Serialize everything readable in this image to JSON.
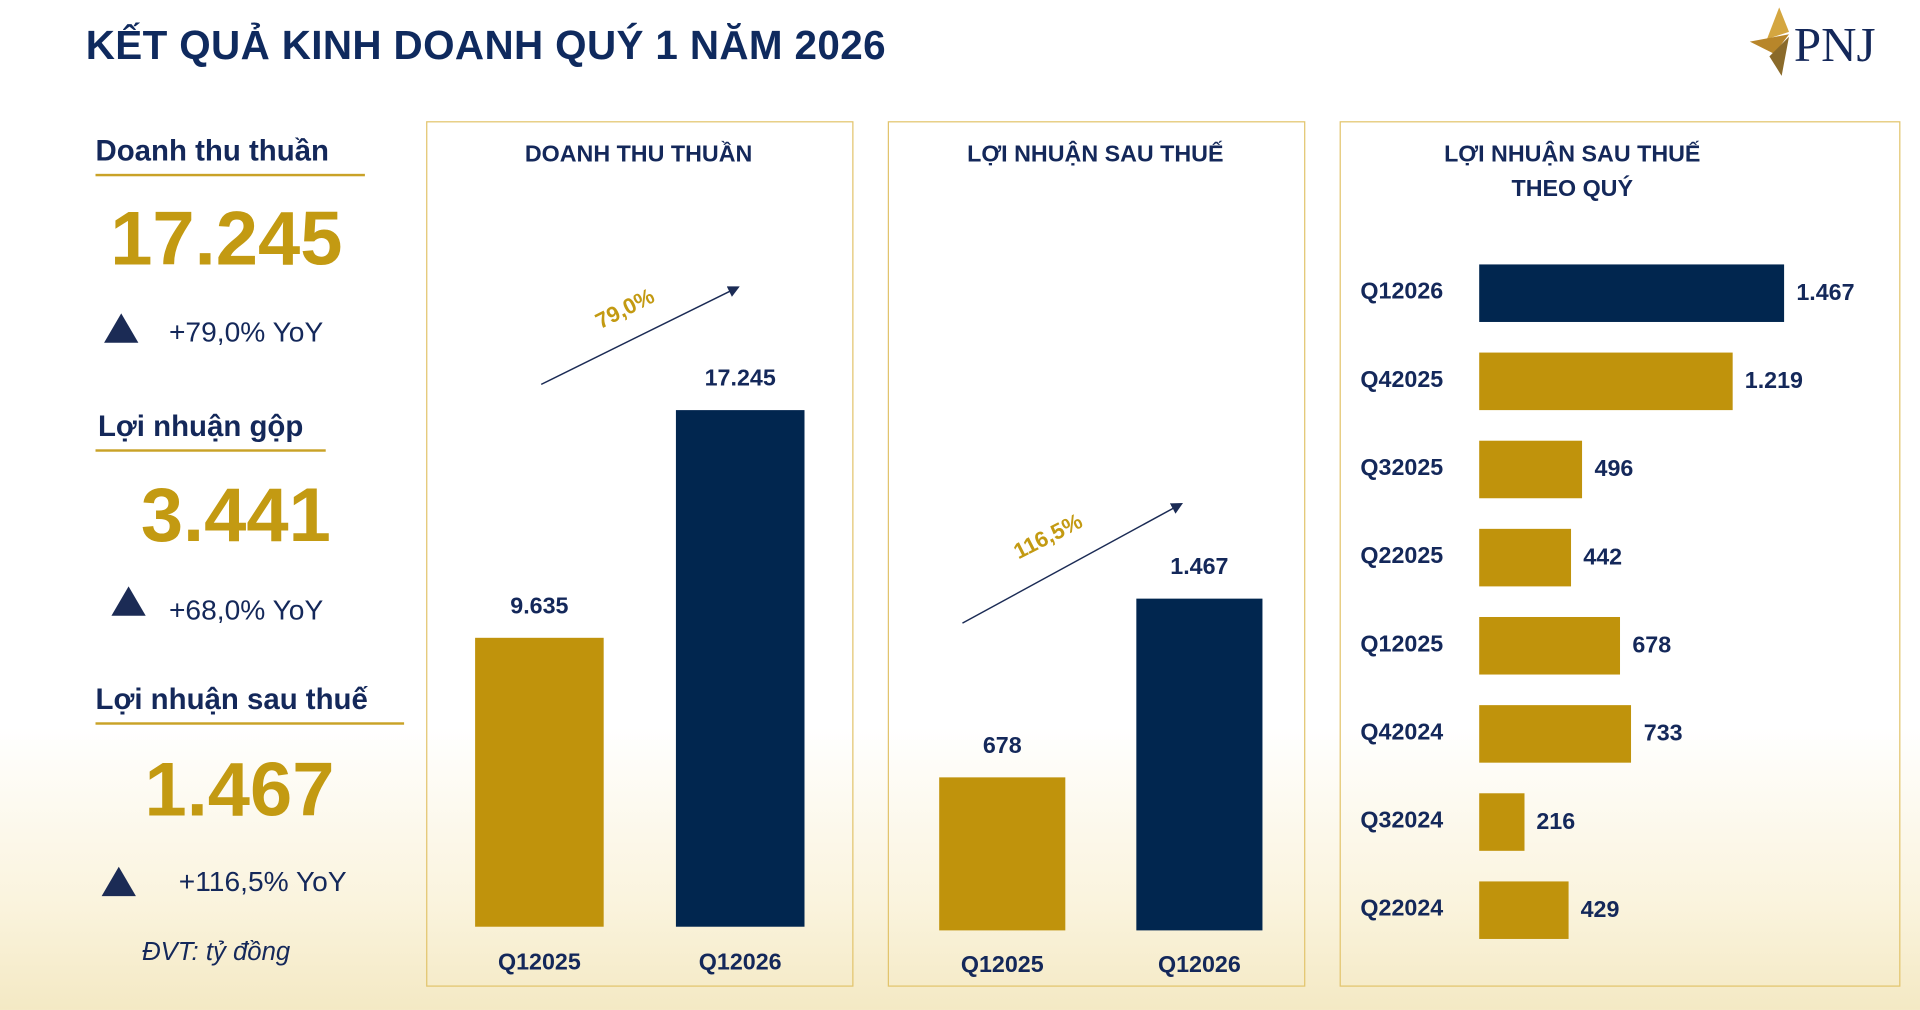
{
  "header": {
    "title": "KẾT QUẢ KINH DOANH QUÝ 1 NĂM 2026",
    "logo_text": "PNJ"
  },
  "kpis": [
    {
      "label": "Doanh thu thuần",
      "value": "17.245",
      "change": "+79,0% YoY"
    },
    {
      "label": "Lợi nhuận gộp",
      "value": "3.441",
      "change": "+68,0% YoY"
    },
    {
      "label": "Lợi nhuận sau thuế",
      "value": "1.467",
      "change": "+116,5% YoY"
    }
  ],
  "unit_note": "ĐVT: tỷ đồng",
  "colors": {
    "navy": "#01264f",
    "gold": "#c0930c",
    "title": "#0f2a5e"
  },
  "chart_data": [
    {
      "type": "bar",
      "title": "DOANH THU THUẦN",
      "categories": [
        "Q12025",
        "Q12026"
      ],
      "values": [
        9635,
        17245
      ],
      "value_labels": [
        "9.635",
        "17.245"
      ],
      "growth_label": "79,0%",
      "colors": [
        "#c0930c",
        "#01264f"
      ]
    },
    {
      "type": "bar",
      "title": "LỢI NHUẬN SAU THUẾ",
      "categories": [
        "Q12025",
        "Q12026"
      ],
      "values": [
        678,
        1467
      ],
      "value_labels": [
        "678",
        "1.467"
      ],
      "growth_label": "116,5%",
      "colors": [
        "#c0930c",
        "#01264f"
      ]
    },
    {
      "type": "bar",
      "orientation": "horizontal",
      "title": "LỢI NHUẬN SAU THUẾ THEO QUÝ",
      "title_lines": [
        "LỢI NHUẬN SAU THUẾ",
        "THEO QUÝ"
      ],
      "categories": [
        "Q12026",
        "Q42025",
        "Q32025",
        "Q22025",
        "Q12025",
        "Q42024",
        "Q32024",
        "Q22024"
      ],
      "values": [
        1467,
        1219,
        496,
        442,
        678,
        733,
        216,
        429
      ],
      "value_labels": [
        "1.467",
        "1.219",
        "496",
        "442",
        "678",
        "733",
        "216",
        "429"
      ],
      "colors": [
        "#01264f",
        "#c0930c",
        "#c0930c",
        "#c0930c",
        "#c0930c",
        "#c0930c",
        "#c0930c",
        "#c0930c"
      ]
    }
  ]
}
